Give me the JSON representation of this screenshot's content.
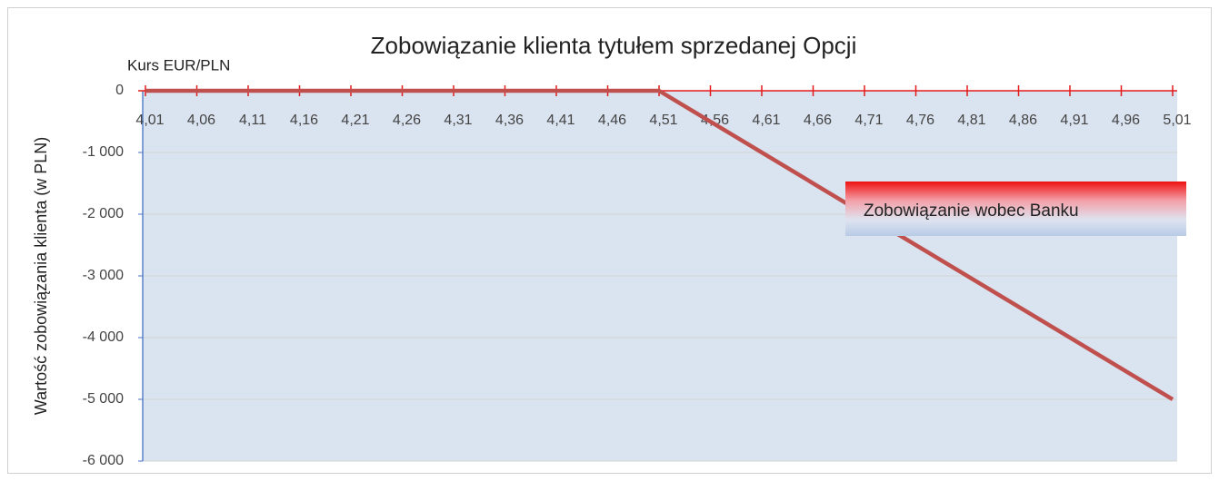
{
  "chart_data": {
    "type": "line",
    "title": "Zobowiązanie klienta tytułem sprzedanej Opcji",
    "x_label": "Kurs EUR/PLN",
    "y_label": "Wartość zobowiązania klienta (w PLN)",
    "annotation": "Zobowiązanie wobec Banku",
    "x": [
      4.01,
      4.51,
      5.01
    ],
    "series": [
      {
        "name": "Zobowiązanie wobec Banku",
        "color": "#c0504d",
        "values": [
          0,
          0,
          -5000
        ]
      }
    ],
    "xlim": [
      4.01,
      5.01
    ],
    "xticks": [
      {
        "value": 4.01,
        "label": "4,01"
      },
      {
        "value": 4.06,
        "label": "4,06"
      },
      {
        "value": 4.11,
        "label": "4,11"
      },
      {
        "value": 4.16,
        "label": "4,16"
      },
      {
        "value": 4.21,
        "label": "4,21"
      },
      {
        "value": 4.26,
        "label": "4,26"
      },
      {
        "value": 4.31,
        "label": "4,31"
      },
      {
        "value": 4.36,
        "label": "4,36"
      },
      {
        "value": 4.41,
        "label": "4,41"
      },
      {
        "value": 4.46,
        "label": "4,46"
      },
      {
        "value": 4.51,
        "label": "4,51"
      },
      {
        "value": 4.56,
        "label": "4,56"
      },
      {
        "value": 4.61,
        "label": "4,61"
      },
      {
        "value": 4.66,
        "label": "4,66"
      },
      {
        "value": 4.71,
        "label": "4,71"
      },
      {
        "value": 4.76,
        "label": "4,76"
      },
      {
        "value": 4.81,
        "label": "4,81"
      },
      {
        "value": 4.86,
        "label": "4,86"
      },
      {
        "value": 4.91,
        "label": "4,91"
      },
      {
        "value": 4.96,
        "label": "4,96"
      },
      {
        "value": 5.01,
        "label": "5,01"
      }
    ],
    "ylim": [
      -6000,
      0
    ],
    "yticks": [
      0,
      {
        "value": -1000,
        "label": "-1 000"
      },
      {
        "value": -2000,
        "label": "-2 000"
      },
      {
        "value": -3000,
        "label": "-3 000"
      },
      {
        "value": -4000,
        "label": "-4 000"
      },
      {
        "value": -5000,
        "label": "-5 000"
      },
      {
        "value": -6000,
        "label": "-6 000"
      }
    ],
    "grid": true,
    "plot_background": "#dae3f0",
    "axis_color": "#e31b1b"
  }
}
